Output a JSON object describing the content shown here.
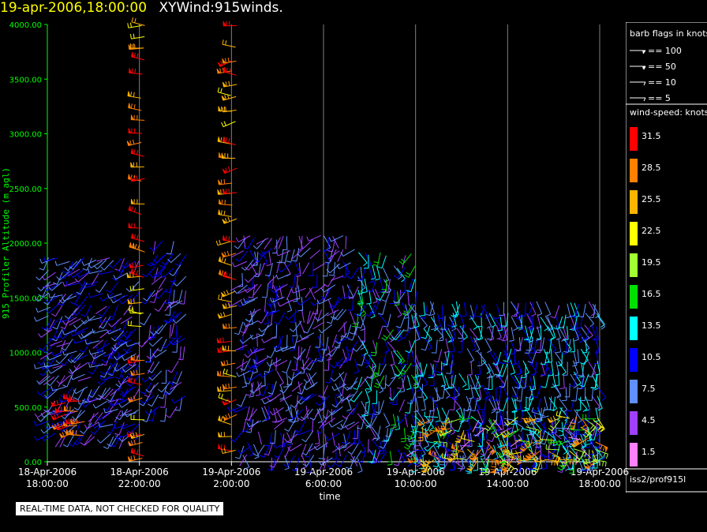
{
  "header": {
    "datetime": "19-apr-2006,18:00:00",
    "product": "XYWind:915winds."
  },
  "notice": "REAL-TIME DATA, NOT CHECKED FOR QUALITY",
  "station_id": "iss2/prof915l",
  "colors": {
    "axis": "#00ff00",
    "title_date": "#ffff00",
    "gridline": "#808080"
  },
  "chart_data": {
    "type": "scatter",
    "title": "XYWind:915winds.",
    "xlabel": "time",
    "ylabel": "915 Profiler Altitude (m agl)",
    "ylim": [
      0,
      4000
    ],
    "xlim_hours": [
      0,
      24
    ],
    "yticks": [
      "0.00",
      "500.00",
      "1000.00",
      "1500.00",
      "2000.00",
      "2500.00",
      "3000.00",
      "3500.00",
      "4000.00"
    ],
    "xticks": [
      {
        "date": "18-Apr-2006",
        "time": "18:00:00",
        "hour": 0
      },
      {
        "date": "18-Apr-2006",
        "time": "22:00:00",
        "hour": 4
      },
      {
        "date": "19-Apr-2006",
        "time": "2:00:00",
        "hour": 8
      },
      {
        "date": "19-Apr-2006",
        "time": "6:00:00",
        "hour": 12
      },
      {
        "date": "19-Apr-2006",
        "time": "10:00:00",
        "hour": 16
      },
      {
        "date": "19-Apr-2006",
        "time": "14:00:00",
        "hour": 20
      },
      {
        "date": "19-Apr-2006",
        "time": "18:00:00",
        "hour": 24
      }
    ],
    "grid": "vertical",
    "barb_legend": {
      "title": "barb flags in knots",
      "items": [
        "== 100",
        "== 50",
        "== 10",
        "== 5"
      ]
    },
    "speed_legend": {
      "title": "wind-speed: knots",
      "bins": [
        {
          "label": "31.5",
          "color": "#ff0000"
        },
        {
          "label": "28.5",
          "color": "#ff8000"
        },
        {
          "label": "25.5",
          "color": "#ffb400"
        },
        {
          "label": "22.5",
          "color": "#ffff00"
        },
        {
          "label": "19.5",
          "color": "#a0ff30"
        },
        {
          "label": "16.5",
          "color": "#00e000"
        },
        {
          "label": "13.5",
          "color": "#00ffff"
        },
        {
          "label": "10.5",
          "color": "#0000ff"
        },
        {
          "label": "7.5",
          "color": "#6090ff"
        },
        {
          "label": "4.5",
          "color": "#a040ff"
        },
        {
          "label": "1.5",
          "color": "#ff80ff"
        }
      ]
    },
    "series": [
      {
        "hour_range": [
          0,
          4
        ],
        "alt_range": [
          250,
          1850
        ],
        "speed_range": [
          4,
          12
        ],
        "dir_range": [
          200,
          260
        ]
      },
      {
        "hour_range": [
          0.8,
          1.6
        ],
        "alt_range": [
          250,
          550
        ],
        "speed_range": [
          28,
          33
        ],
        "dir_range": [
          240,
          280
        ]
      },
      {
        "hour_range": [
          4.1,
          4.2
        ],
        "alt_range": [
          50,
          4000
        ],
        "speed_range": [
          22,
          33
        ],
        "dir_range": [
          250,
          290
        ]
      },
      {
        "hour_range": [
          4.5,
          6
        ],
        "alt_range": [
          500,
          2000
        ],
        "speed_range": [
          4,
          12
        ],
        "dir_range": [
          180,
          240
        ]
      },
      {
        "hour_range": [
          8.0,
          8.2
        ],
        "alt_range": [
          0,
          4000
        ],
        "speed_range": [
          22,
          33
        ],
        "dir_range": [
          240,
          290
        ]
      },
      {
        "hour_range": [
          8.5,
          13.5
        ],
        "alt_range": [
          50,
          2050
        ],
        "speed_range": [
          3,
          11
        ],
        "dir_range": [
          150,
          250
        ]
      },
      {
        "hour_range": [
          13.5,
          16
        ],
        "alt_range": [
          100,
          1900
        ],
        "speed_range": [
          4,
          16
        ],
        "dir_range": [
          140,
          220
        ]
      },
      {
        "hour_range": [
          16,
          24
        ],
        "alt_range": [
          50,
          1450
        ],
        "speed_range": [
          5,
          15
        ],
        "dir_range": [
          140,
          200
        ]
      },
      {
        "hour_range": [
          16,
          24
        ],
        "alt_range": [
          0,
          400
        ],
        "speed_range": [
          1,
          30
        ],
        "dir_range": [
          90,
          300
        ]
      }
    ]
  }
}
